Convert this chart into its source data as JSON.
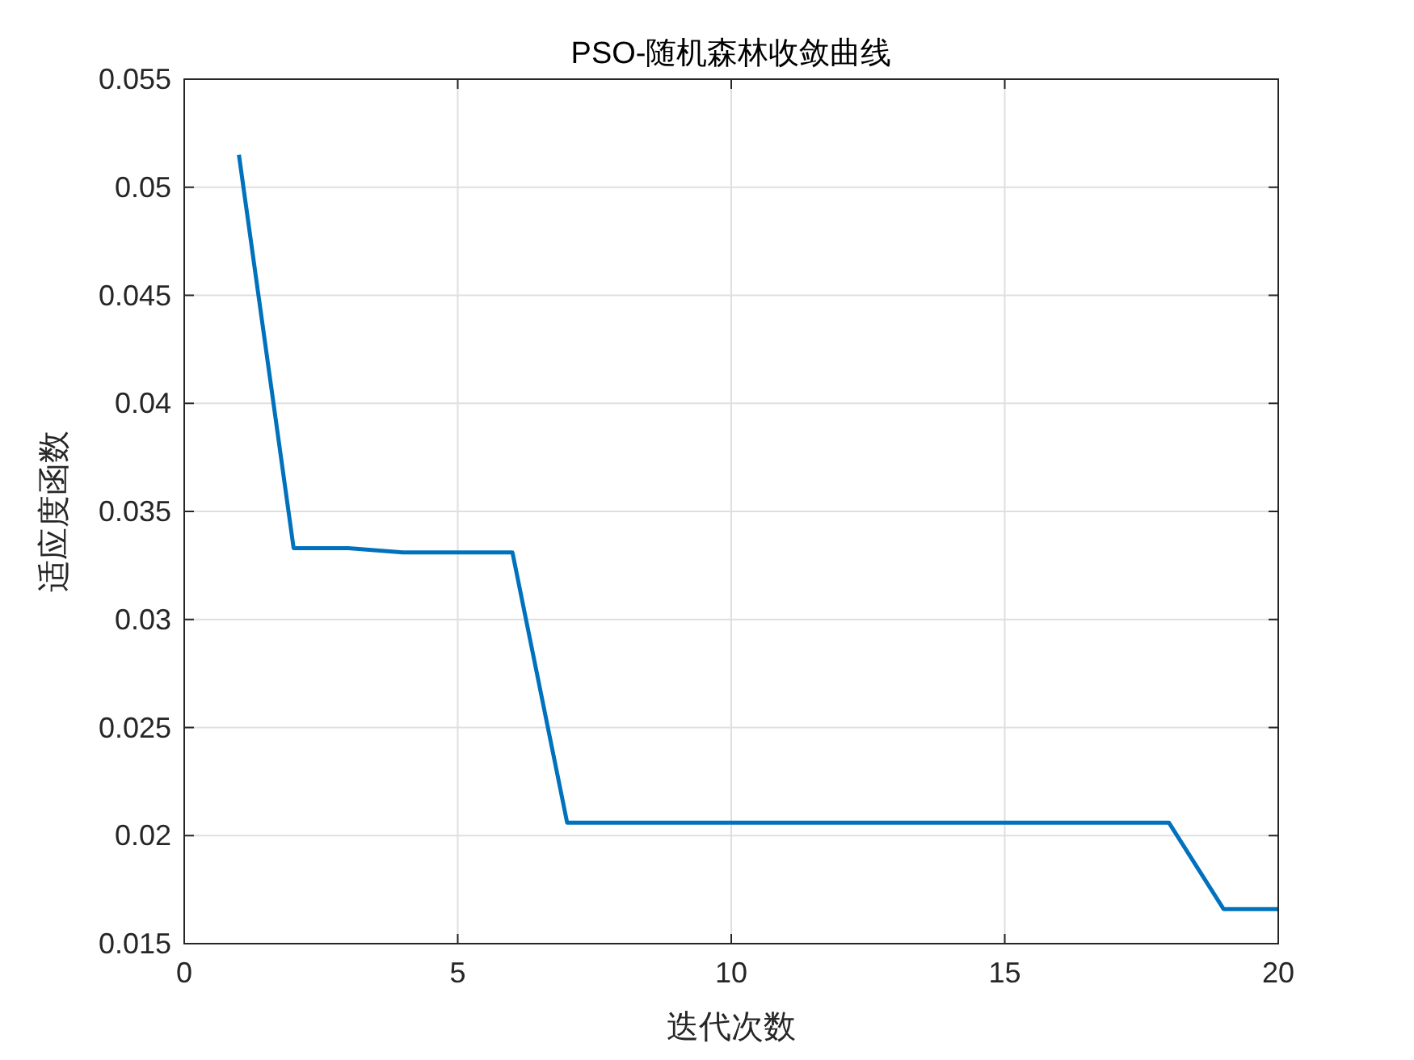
{
  "chart_data": {
    "type": "line",
    "title": "PSO-随机森林收敛曲线",
    "xlabel": "迭代次数",
    "ylabel": "适应度函数",
    "x": [
      1,
      2,
      3,
      4,
      5,
      6,
      7,
      8,
      9,
      10,
      11,
      12,
      13,
      14,
      15,
      16,
      17,
      18,
      19,
      20
    ],
    "series": [
      {
        "color": "#0072bd",
        "values": [
          0.0515,
          0.0333,
          0.0333,
          0.0331,
          0.0331,
          0.0331,
          0.0206,
          0.0206,
          0.0206,
          0.0206,
          0.0206,
          0.0206,
          0.0206,
          0.0206,
          0.0206,
          0.0206,
          0.0206,
          0.0206,
          0.0166,
          0.0166
        ]
      }
    ],
    "xlim": [
      0,
      20
    ],
    "xticks": [
      0,
      5,
      10,
      15,
      20
    ],
    "ylim": [
      0.015,
      0.055
    ],
    "yticks": [
      0.015,
      0.02,
      0.025,
      0.03,
      0.035,
      0.04,
      0.045,
      0.05,
      0.055
    ],
    "grid": true,
    "marker": "none",
    "line_style": "solid"
  }
}
